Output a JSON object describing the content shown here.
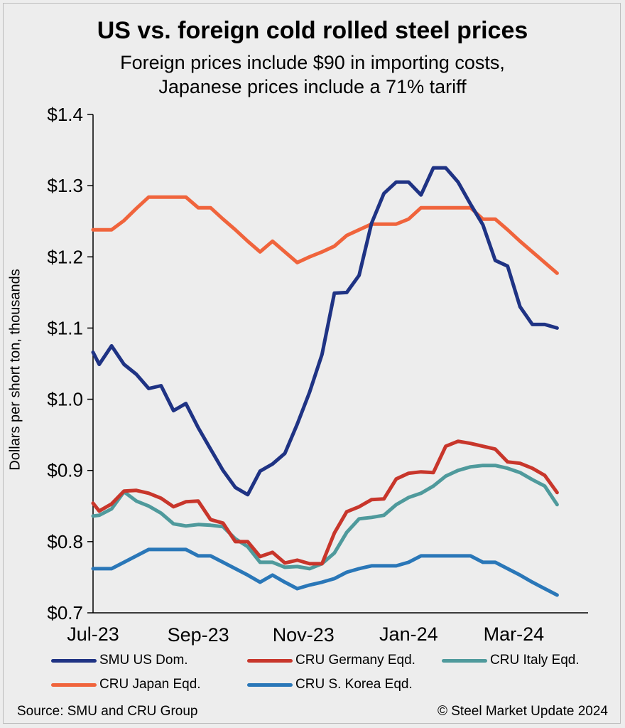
{
  "chart_data": {
    "type": "line",
    "title": "US vs. foreign cold rolled steel prices",
    "subtitle_line1": "Foreign prices include $90 in importing costs,",
    "subtitle_line2": "Japanese prices include a 71% tariff",
    "ylabel": "Dollars per short ton, thousands",
    "xlabel": "",
    "ylim": [
      0.7,
      1.4
    ],
    "yticks": [
      {
        "value": 0.7,
        "label": "$0.7"
      },
      {
        "value": 0.8,
        "label": "$0.8"
      },
      {
        "value": 0.9,
        "label": "$0.9"
      },
      {
        "value": 1.0,
        "label": "$1.0"
      },
      {
        "value": 1.1,
        "label": "$1.1"
      },
      {
        "value": 1.2,
        "label": "$1.2"
      },
      {
        "value": 1.3,
        "label": "$1.3"
      },
      {
        "value": 1.4,
        "label": "$1.4"
      }
    ],
    "xlim": [
      0,
      40
    ],
    "xticks": [
      {
        "value": 0,
        "label": "Jul-23",
        "row": 0
      },
      {
        "value": 8.5,
        "label": "Sep-23",
        "row": 1
      },
      {
        "value": 17,
        "label": "Nov-23",
        "row": 1
      },
      {
        "value": 25.5,
        "label": "Jan-24",
        "row": 0
      },
      {
        "value": 34,
        "label": "Mar-24",
        "row": 0
      }
    ],
    "series": [
      {
        "name": "SMU US Dom.",
        "color": "#1f3384",
        "points": [
          [
            0,
            1.066
          ],
          [
            0.5,
            1.049
          ],
          [
            1.5,
            1.075
          ],
          [
            2.5,
            1.049
          ],
          [
            3.5,
            1.035
          ],
          [
            4.5,
            1.015
          ],
          [
            5.5,
            1.019
          ],
          [
            6.5,
            0.984
          ],
          [
            7.5,
            0.994
          ],
          [
            8.5,
            0.96
          ],
          [
            9.5,
            0.93
          ],
          [
            10.5,
            0.9
          ],
          [
            11.5,
            0.876
          ],
          [
            12.5,
            0.866
          ],
          [
            13.5,
            0.899
          ],
          [
            14.5,
            0.909
          ],
          [
            15.5,
            0.924
          ],
          [
            16.5,
            0.965
          ],
          [
            17.5,
            1.01
          ],
          [
            18.5,
            1.063
          ],
          [
            19.5,
            1.149
          ],
          [
            20.5,
            1.15
          ],
          [
            21.5,
            1.174
          ],
          [
            22.5,
            1.247
          ],
          [
            23.5,
            1.289
          ],
          [
            24.5,
            1.305
          ],
          [
            25.5,
            1.305
          ],
          [
            26.5,
            1.287
          ],
          [
            27.5,
            1.325
          ],
          [
            28.5,
            1.325
          ],
          [
            29.5,
            1.305
          ],
          [
            30.5,
            1.274
          ],
          [
            31.5,
            1.245
          ],
          [
            32.5,
            1.195
          ],
          [
            33.5,
            1.187
          ],
          [
            34.5,
            1.13
          ],
          [
            35.5,
            1.105
          ],
          [
            36.5,
            1.105
          ],
          [
            37.5,
            1.1
          ]
        ]
      },
      {
        "name": "CRU Germany Eqd.",
        "color": "#c8362b",
        "points": [
          [
            0,
            0.854
          ],
          [
            0.5,
            0.843
          ],
          [
            1.5,
            0.853
          ],
          [
            2.5,
            0.871
          ],
          [
            3.5,
            0.872
          ],
          [
            4.5,
            0.868
          ],
          [
            5.5,
            0.861
          ],
          [
            6.5,
            0.849
          ],
          [
            7.5,
            0.856
          ],
          [
            8.5,
            0.857
          ],
          [
            9.5,
            0.831
          ],
          [
            10.5,
            0.826
          ],
          [
            11.5,
            0.8
          ],
          [
            12.5,
            0.8
          ],
          [
            13.5,
            0.779
          ],
          [
            14.5,
            0.785
          ],
          [
            15.5,
            0.77
          ],
          [
            16.5,
            0.774
          ],
          [
            17.5,
            0.769
          ],
          [
            18.5,
            0.769
          ],
          [
            19.5,
            0.812
          ],
          [
            20.5,
            0.842
          ],
          [
            21.5,
            0.849
          ],
          [
            22.5,
            0.859
          ],
          [
            23.5,
            0.86
          ],
          [
            24.5,
            0.888
          ],
          [
            25.5,
            0.896
          ],
          [
            26.5,
            0.898
          ],
          [
            27.5,
            0.897
          ],
          [
            28.5,
            0.934
          ],
          [
            29.5,
            0.941
          ],
          [
            30.5,
            0.938
          ],
          [
            31.5,
            0.934
          ],
          [
            32.5,
            0.93
          ],
          [
            33.5,
            0.912
          ],
          [
            34.5,
            0.91
          ],
          [
            35.5,
            0.903
          ],
          [
            36.5,
            0.893
          ],
          [
            37.5,
            0.869
          ]
        ]
      },
      {
        "name": "CRU Italy Eqd.",
        "color": "#4f9a9c",
        "points": [
          [
            0,
            0.836
          ],
          [
            0.5,
            0.837
          ],
          [
            1.5,
            0.846
          ],
          [
            2.5,
            0.87
          ],
          [
            3.5,
            0.857
          ],
          [
            4.5,
            0.85
          ],
          [
            5.5,
            0.84
          ],
          [
            6.5,
            0.825
          ],
          [
            7.5,
            0.822
          ],
          [
            8.5,
            0.824
          ],
          [
            9.5,
            0.823
          ],
          [
            10.5,
            0.821
          ],
          [
            11.5,
            0.804
          ],
          [
            12.5,
            0.793
          ],
          [
            13.5,
            0.771
          ],
          [
            14.5,
            0.771
          ],
          [
            15.5,
            0.764
          ],
          [
            16.5,
            0.765
          ],
          [
            17.5,
            0.762
          ],
          [
            18.5,
            0.769
          ],
          [
            19.5,
            0.784
          ],
          [
            20.5,
            0.813
          ],
          [
            21.5,
            0.832
          ],
          [
            22.5,
            0.834
          ],
          [
            23.5,
            0.837
          ],
          [
            24.5,
            0.852
          ],
          [
            25.5,
            0.862
          ],
          [
            26.5,
            0.868
          ],
          [
            27.5,
            0.878
          ],
          [
            28.5,
            0.892
          ],
          [
            29.5,
            0.9
          ],
          [
            30.5,
            0.905
          ],
          [
            31.5,
            0.907
          ],
          [
            32.5,
            0.907
          ],
          [
            33.5,
            0.903
          ],
          [
            34.5,
            0.897
          ],
          [
            35.5,
            0.887
          ],
          [
            36.5,
            0.878
          ],
          [
            37.5,
            0.852
          ]
        ]
      },
      {
        "name": "CRU Japan Eqd.",
        "color": "#f0643c",
        "points": [
          [
            0,
            1.238
          ],
          [
            0.5,
            1.238
          ],
          [
            1.5,
            1.238
          ],
          [
            2.5,
            1.251
          ],
          [
            3.5,
            1.268
          ],
          [
            4.5,
            1.284
          ],
          [
            5.5,
            1.284
          ],
          [
            6.5,
            1.284
          ],
          [
            7.5,
            1.284
          ],
          [
            8.5,
            1.269
          ],
          [
            9.5,
            1.269
          ],
          [
            10.5,
            1.253
          ],
          [
            11.5,
            1.238
          ],
          [
            12.5,
            1.222
          ],
          [
            13.5,
            1.207
          ],
          [
            14.5,
            1.222
          ],
          [
            15.5,
            1.207
          ],
          [
            16.5,
            1.192
          ],
          [
            17.5,
            1.2
          ],
          [
            18.5,
            1.207
          ],
          [
            19.5,
            1.215
          ],
          [
            20.5,
            1.23
          ],
          [
            21.5,
            1.238
          ],
          [
            22.5,
            1.246
          ],
          [
            23.5,
            1.246
          ],
          [
            24.5,
            1.246
          ],
          [
            25.5,
            1.253
          ],
          [
            26.5,
            1.269
          ],
          [
            27.5,
            1.269
          ],
          [
            28.5,
            1.269
          ],
          [
            29.5,
            1.269
          ],
          [
            30.5,
            1.269
          ],
          [
            31.5,
            1.253
          ],
          [
            32.5,
            1.253
          ],
          [
            33.5,
            1.238
          ],
          [
            34.5,
            1.222
          ],
          [
            35.5,
            1.207
          ],
          [
            36.5,
            1.192
          ],
          [
            37.5,
            1.177
          ]
        ]
      },
      {
        "name": "CRU S. Korea Eqd.",
        "color": "#2a77b8",
        "points": [
          [
            0,
            0.762
          ],
          [
            0.5,
            0.762
          ],
          [
            1.5,
            0.762
          ],
          [
            2.5,
            0.771
          ],
          [
            3.5,
            0.78
          ],
          [
            4.5,
            0.789
          ],
          [
            5.5,
            0.789
          ],
          [
            6.5,
            0.789
          ],
          [
            7.5,
            0.789
          ],
          [
            8.5,
            0.78
          ],
          [
            9.5,
            0.78
          ],
          [
            10.5,
            0.771
          ],
          [
            11.5,
            0.762
          ],
          [
            12.5,
            0.753
          ],
          [
            13.5,
            0.743
          ],
          [
            14.5,
            0.753
          ],
          [
            15.5,
            0.743
          ],
          [
            16.5,
            0.734
          ],
          [
            17.5,
            0.739
          ],
          [
            18.5,
            0.743
          ],
          [
            19.5,
            0.748
          ],
          [
            20.5,
            0.757
          ],
          [
            21.5,
            0.762
          ],
          [
            22.5,
            0.766
          ],
          [
            23.5,
            0.766
          ],
          [
            24.5,
            0.766
          ],
          [
            25.5,
            0.771
          ],
          [
            26.5,
            0.78
          ],
          [
            27.5,
            0.78
          ],
          [
            28.5,
            0.78
          ],
          [
            29.5,
            0.78
          ],
          [
            30.5,
            0.78
          ],
          [
            31.5,
            0.771
          ],
          [
            32.5,
            0.771
          ],
          [
            33.5,
            0.762
          ],
          [
            34.5,
            0.753
          ],
          [
            35.5,
            0.743
          ],
          [
            36.5,
            0.734
          ],
          [
            37.5,
            0.725
          ]
        ]
      }
    ],
    "legend_position": "bottom"
  },
  "footer": {
    "source": "Source: SMU and CRU Group",
    "copyright": "© Steel Market Update 2024"
  }
}
